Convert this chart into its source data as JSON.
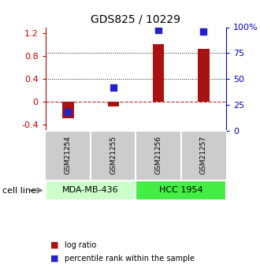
{
  "title": "GDS825 / 10229",
  "samples": [
    "GSM21254",
    "GSM21255",
    "GSM21256",
    "GSM21257"
  ],
  "log_ratio": [
    -0.28,
    -0.08,
    1.0,
    0.92
  ],
  "percentile_rank": [
    18,
    42,
    97,
    96
  ],
  "cell_lines": [
    {
      "name": "MDA-MB-436",
      "samples": [
        0,
        1
      ],
      "color": "#ccffcc"
    },
    {
      "name": "HCC 1954",
      "samples": [
        2,
        3
      ],
      "color": "#44ee44"
    }
  ],
  "ylim_left": [
    -0.5,
    1.3
  ],
  "ylim_right": [
    0,
    100
  ],
  "yticks_left": [
    -0.4,
    0.0,
    0.4,
    0.8,
    1.2
  ],
  "ytick_labels_left": [
    "-0.4",
    "0",
    "0.4",
    "0.8",
    "1.2"
  ],
  "yticks_right": [
    0,
    25,
    50,
    75,
    100
  ],
  "ytick_labels_right": [
    "0",
    "25",
    "50",
    "75",
    "100%"
  ],
  "bar_color": "#aa1111",
  "dot_color": "#2222cc",
  "zero_line_color": "#cc2222",
  "grid_color": "#111111",
  "bg_color": "#ffffff",
  "sample_box_color": "#cccccc",
  "cell_line_label": "cell line",
  "legend_log_ratio": "log ratio",
  "legend_percentile": "percentile rank within the sample",
  "bar_width": 0.25,
  "dot_size": 40,
  "left_spine_color": "#cc0000",
  "right_spine_color": "#0000cc"
}
